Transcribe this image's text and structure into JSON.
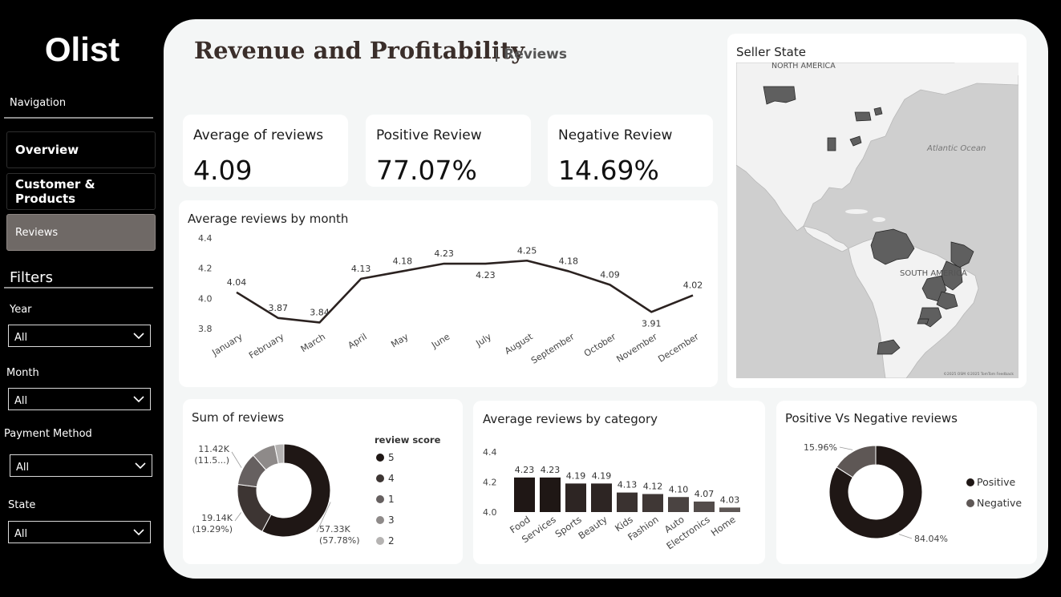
{
  "sidebar": {
    "logo": "Olist",
    "nav_title": "Navigation",
    "nav": [
      {
        "label": "Overview"
      },
      {
        "label": "Customer & Products"
      },
      {
        "label": "Reviews"
      }
    ],
    "filters_title": "Filters",
    "filters": [
      {
        "label": "Year",
        "value": "All"
      },
      {
        "label": "Month",
        "value": "All"
      },
      {
        "label": "Payment Method",
        "value": "All"
      },
      {
        "label": "State",
        "value": "All"
      }
    ]
  },
  "header": {
    "title": "Revenue and Profitability",
    "subtitle": "| Reviews"
  },
  "kpis": [
    {
      "label": "Average of reviews",
      "value": "4.09"
    },
    {
      "label": "Positive Review",
      "value": "77.07%"
    },
    {
      "label": "Negative Review",
      "value": "14.69%"
    }
  ],
  "map": {
    "title": "Seller State",
    "labels": [
      "NORTH AMERICA",
      "Atlantic Ocean",
      "SOUTH AMERICA"
    ],
    "attribution": "©2025 OSM ©2025 TomTom Feedback",
    "land_color": "#f2f2f2",
    "water_color": "#cfcfcf",
    "highlight_color": "#5f5f5f"
  },
  "chart_data": [
    {
      "type": "line",
      "title": "Average reviews by month",
      "categories": [
        "January",
        "February",
        "March",
        "April",
        "May",
        "June",
        "July",
        "August",
        "September",
        "October",
        "November",
        "December"
      ],
      "values": [
        4.04,
        3.87,
        3.84,
        4.13,
        4.18,
        4.23,
        4.23,
        4.25,
        4.18,
        4.09,
        3.91,
        4.02
      ],
      "data_labels": [
        "4.04",
        "3.87",
        "3.84",
        "4.13",
        "4.18",
        "4.23",
        "4.23",
        "4.25",
        "4.18",
        "4.09",
        "3.91",
        "4.02"
      ],
      "yticks": [
        "4.4",
        "4.2",
        "4.0",
        "3.8"
      ],
      "ylim": [
        3.8,
        4.4
      ],
      "grid": false,
      "line_color": "#2b2220"
    },
    {
      "type": "pie",
      "title": "Sum of reviews",
      "legend_title": "review score",
      "legend_position": "right",
      "slices": [
        {
          "name": "5",
          "value": 57.78,
          "color": "#1f1715",
          "label": "57.33K\n(57.78%)"
        },
        {
          "name": "4",
          "value": 19.29,
          "color": "#3d3533",
          "label": "19.14K\n(19.29%)"
        },
        {
          "name": "1",
          "value": 11.51,
          "color": "#666060",
          "label": "11.42K\n(11.5...)"
        },
        {
          "name": "3",
          "value": 8.24,
          "color": "#8e8a89",
          "label": ""
        },
        {
          "name": "2",
          "value": 3.18,
          "color": "#b5b3b2",
          "label": ""
        }
      ]
    },
    {
      "type": "bar",
      "title": "Average reviews by category",
      "categories": [
        "Food",
        "Services",
        "Sports",
        "Beauty",
        "Kids",
        "Fashion",
        "Auto",
        "Electronics",
        "Home"
      ],
      "values": [
        4.23,
        4.23,
        4.19,
        4.19,
        4.13,
        4.12,
        4.1,
        4.07,
        4.03
      ],
      "data_labels": [
        "4.23",
        "4.23",
        "4.19",
        "4.19",
        "4.13",
        "4.12",
        "4.10",
        "4.07",
        "4.03"
      ],
      "yticks": [
        "4.4",
        "4.2",
        "4.0"
      ],
      "ylim": [
        4.0,
        4.4
      ],
      "colors": [
        "#1f1715",
        "#1f1715",
        "#2d2523",
        "#2d2523",
        "#3a3230",
        "#3f3735",
        "#4a4341",
        "#534c4a",
        "#5e5755"
      ]
    },
    {
      "type": "pie",
      "title": "Positive Vs Negative reviews",
      "legend_position": "right",
      "slices": [
        {
          "name": "Positive",
          "value": 84.04,
          "color": "#1f1715",
          "label": "84.04%"
        },
        {
          "name": "Negative",
          "value": 15.96,
          "color": "#5e5755",
          "label": "15.96%"
        }
      ]
    }
  ]
}
